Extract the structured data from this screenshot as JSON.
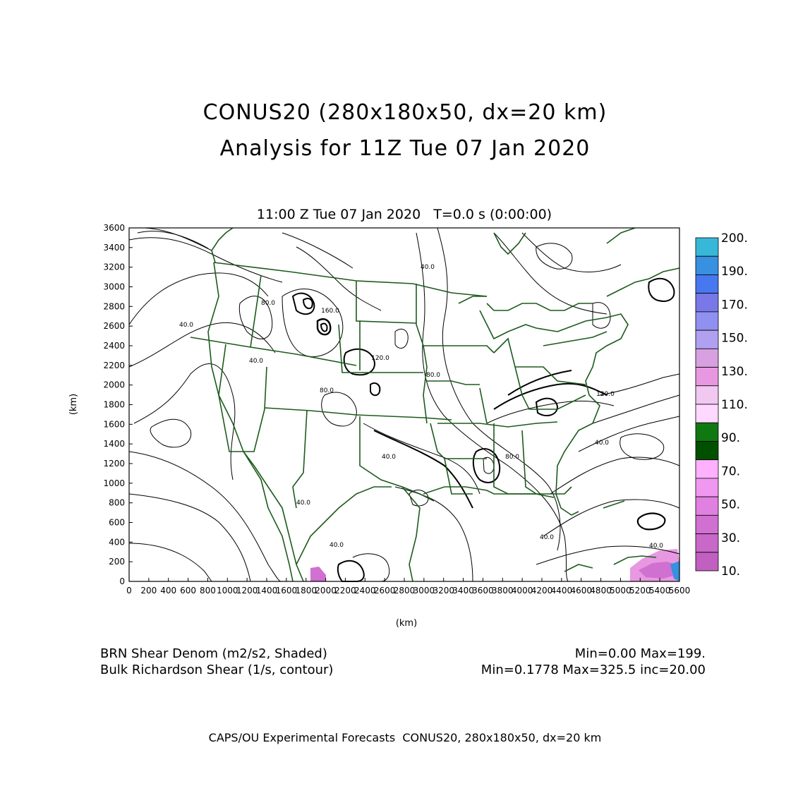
{
  "title": {
    "line1": "CONUS20 (280x180x50, dx=20 km)",
    "line2": "Analysis for 11Z Tue 07 Jan 2020"
  },
  "subtitle": "11:00 Z Tue 07 Jan 2020   T=0.0 s (0:00:00)",
  "axes": {
    "xlabel": "(km)",
    "ylabel": "(km)",
    "x_range": [
      0,
      5600
    ],
    "y_range": [
      0,
      3600
    ],
    "x_ticks": [
      "0",
      "200",
      "400",
      "600",
      "800",
      "1000",
      "1200",
      "1400",
      "1600",
      "1800",
      "2000",
      "2200",
      "2400",
      "2600",
      "2800",
      "3000",
      "3200",
      "3400",
      "3600",
      "3800",
      "4000",
      "4200",
      "4400",
      "4600",
      "4800",
      "5000",
      "5200",
      "5400",
      "5600"
    ],
    "y_ticks": [
      "0",
      "200",
      "400",
      "600",
      "800",
      "1000",
      "1200",
      "1400",
      "1600",
      "1800",
      "2000",
      "2200",
      "2400",
      "2600",
      "2800",
      "3000",
      "3200",
      "3400",
      "3600"
    ]
  },
  "contour_labels": [
    "40.0",
    "40.0",
    "40.0",
    "40.0",
    "40.0",
    "40.0",
    "40.0",
    "40.0",
    "40.0",
    "80.0",
    "80.0",
    "80.0",
    "80.0",
    "120.0",
    "120.0",
    "160.0"
  ],
  "colorbar": {
    "labels": [
      "200.",
      "190.",
      "170.",
      "150.",
      "130.",
      "110.",
      "90.",
      "70.",
      "50.",
      "30.",
      "10."
    ],
    "colors": [
      "#38b8d8",
      "#3890e0",
      "#4878f0",
      "#7878e8",
      "#9090f0",
      "#b0a0f0",
      "#d8a0e0",
      "#e898e0",
      "#f0c8f0",
      "#ffd8ff",
      "#107810",
      "#005000",
      "#ffb0ff",
      "#f098f0",
      "#e080e0",
      "#d070d0",
      "#c868c8",
      "#c060c0"
    ]
  },
  "legend": {
    "field1": "BRN Shear Denom (m2/s2, Shaded)",
    "field1_stats": "Min=0.00 Max=199.",
    "field2": "Bulk Richardson Shear (1/s, contour)",
    "field2_stats": "Min=0.1778 Max=325.5 inc=20.00"
  },
  "footer": "CAPS/OU Experimental Forecasts  CONUS20, 280x180x50, dx=20 km"
}
